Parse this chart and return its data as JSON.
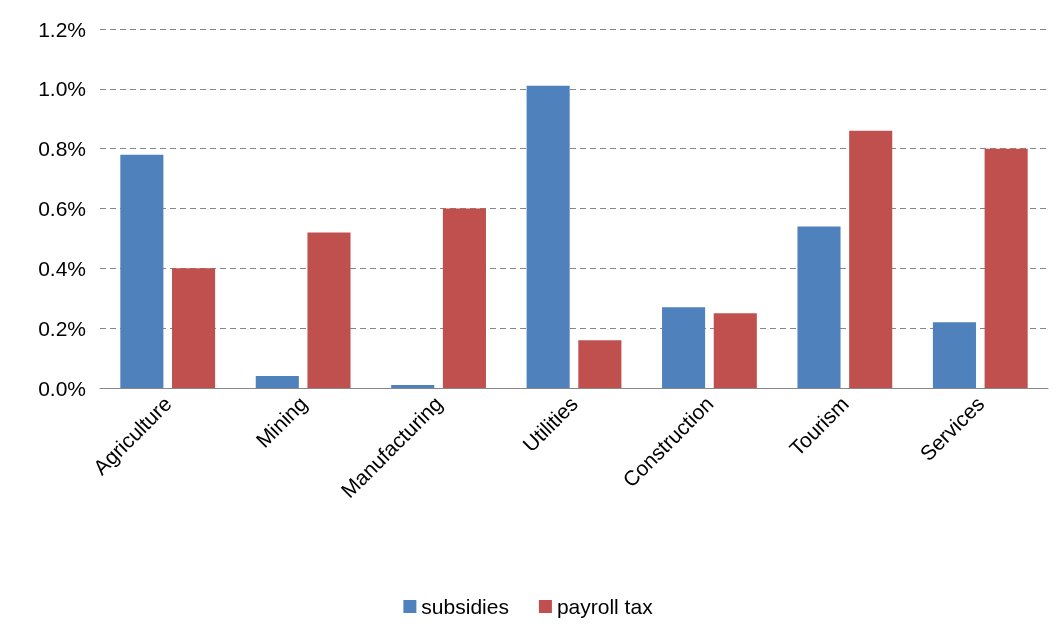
{
  "chart_data": {
    "type": "bar",
    "categories": [
      "Agriculture",
      "Mining",
      "Manufacturing",
      "Utilities",
      "Construction",
      "Tourism",
      "Services"
    ],
    "series": [
      {
        "name": "subsidies",
        "color": "#4f81bd",
        "values": [
          0.78,
          0.04,
          0.01,
          1.01,
          0.27,
          0.54,
          0.22
        ]
      },
      {
        "name": "payroll tax",
        "color": "#c0504d",
        "values": [
          0.4,
          0.52,
          0.6,
          0.16,
          0.25,
          0.86,
          0.8
        ]
      }
    ],
    "ylim": [
      0,
      1.2
    ],
    "yticks": [
      {
        "value": 0,
        "label": "0.0%"
      },
      {
        "value": 0.2,
        "label": "0.2%"
      },
      {
        "value": 0.4,
        "label": "0.4%"
      },
      {
        "value": 0.6,
        "label": "0.6%"
      },
      {
        "value": 0.8,
        "label": "0.8%"
      },
      {
        "value": 1.0,
        "label": "1.0%"
      },
      {
        "value": 1.2,
        "label": "1.2%"
      }
    ],
    "grid": "y",
    "legend": "bottom"
  }
}
